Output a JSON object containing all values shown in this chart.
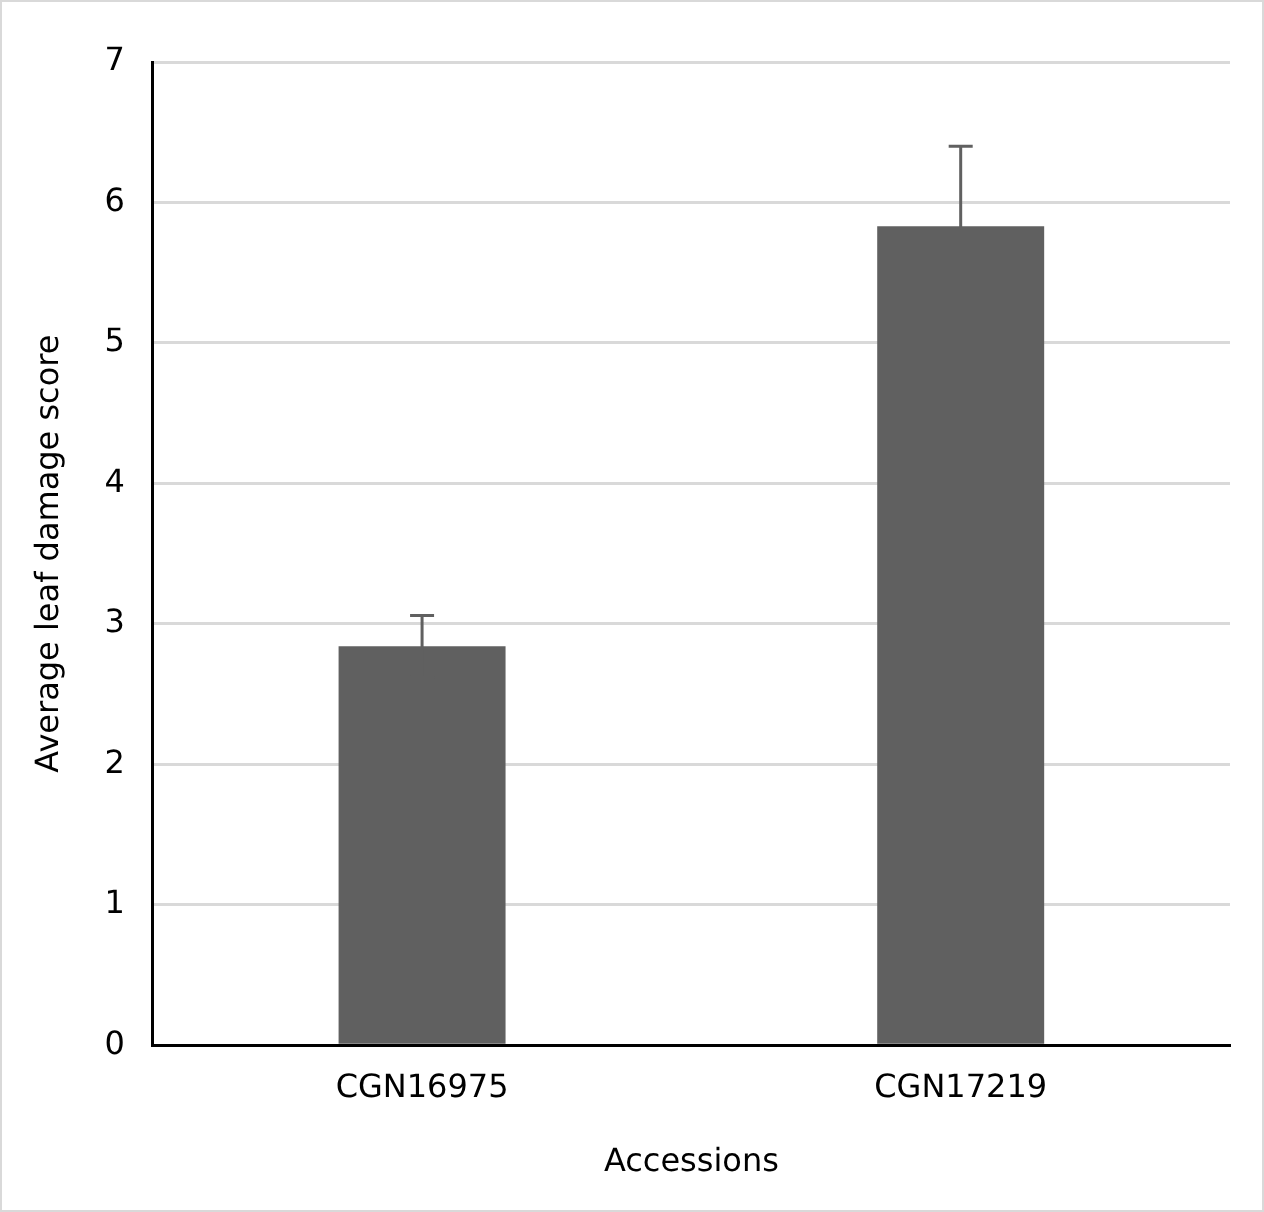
{
  "chart_data": {
    "type": "bar",
    "xlabel": "Accessions",
    "ylabel": "Average leaf damage score",
    "categories": [
      "CGN16975",
      "CGN17219"
    ],
    "values": [
      2.84,
      5.83
    ],
    "errors": [
      0.22,
      0.57
    ],
    "color": "#606060",
    "ylim": [
      0,
      7
    ],
    "yticks": [
      0,
      1,
      2,
      3,
      4,
      5,
      6,
      7
    ],
    "grid": "y",
    "legend": false
  }
}
